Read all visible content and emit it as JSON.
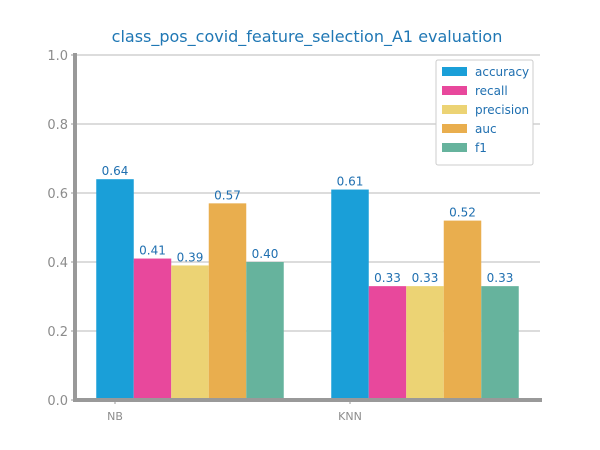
{
  "colors": {
    "title": "#1f77b4",
    "label": "#1f6fb0",
    "tick": "#8c8c8c",
    "grid": "#c8c8c8",
    "axis": "#999999",
    "legend_border": "#cccccc"
  },
  "chart_data": {
    "type": "bar",
    "title": "class_pos_covid_feature_selection_A1 evaluation",
    "xlabel": "",
    "ylabel": "",
    "categories": [
      "NB",
      "KNN"
    ],
    "ylim": [
      0,
      1.0
    ],
    "yticks": [
      "0.0",
      "0.2",
      "0.4",
      "0.6",
      "0.8",
      "1.0"
    ],
    "grid": true,
    "legend_position": "top-right",
    "series": [
      {
        "name": "accuracy",
        "color": "#1a9fd8",
        "values": [
          0.64,
          0.61
        ],
        "labels": [
          "0.64",
          "0.61"
        ]
      },
      {
        "name": "recall",
        "color": "#e8489c",
        "values": [
          0.41,
          0.33
        ],
        "labels": [
          "0.41",
          "0.33"
        ]
      },
      {
        "name": "precision",
        "color": "#ecd374",
        "values": [
          0.39,
          0.33
        ],
        "labels": [
          "0.39",
          "0.33"
        ]
      },
      {
        "name": "auc",
        "color": "#e9ae4e",
        "values": [
          0.57,
          0.52
        ],
        "labels": [
          "0.57",
          "0.52"
        ]
      },
      {
        "name": "f1",
        "color": "#66b39d",
        "values": [
          0.4,
          0.33
        ],
        "labels": [
          "0.40",
          "0.33"
        ]
      }
    ]
  }
}
